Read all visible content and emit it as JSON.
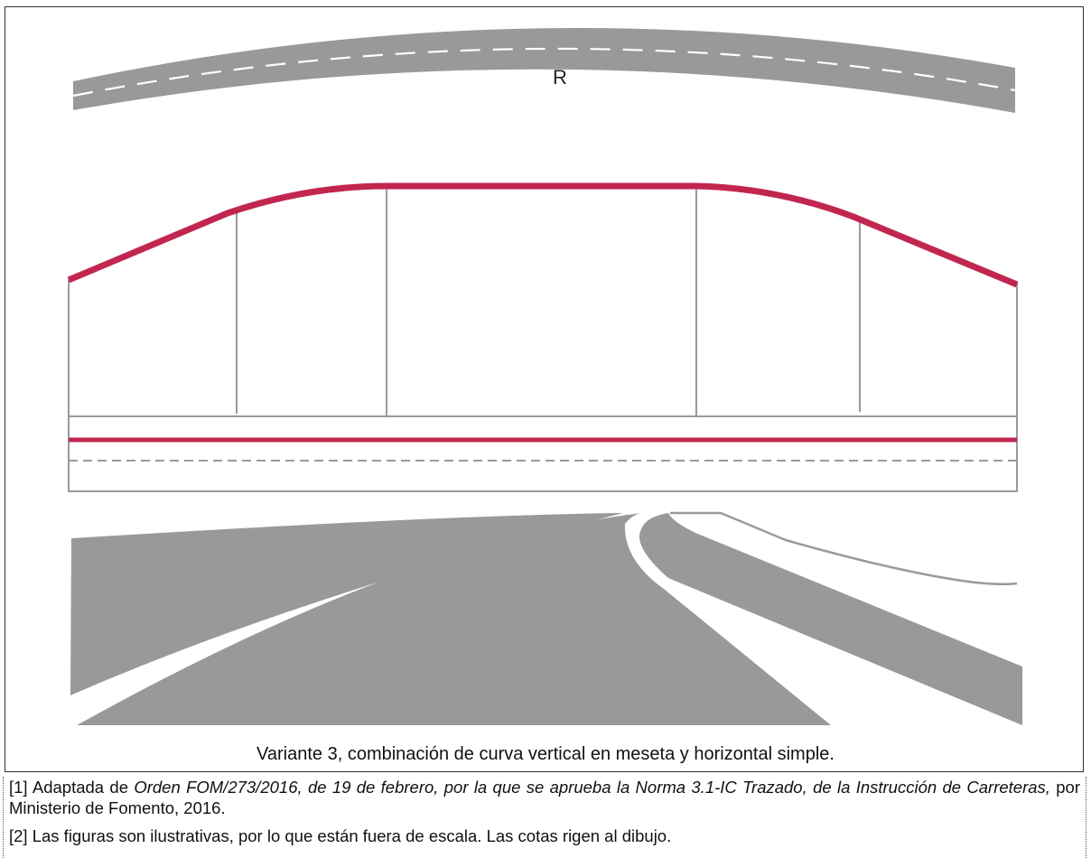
{
  "figure": {
    "label_r": "R",
    "caption": "Variante 3, combinación de curva vertical en meseta y horizontal simple."
  },
  "notes": [
    {
      "prefix": "[1] Adaptada de ",
      "italic": "Orden FOM/273/2016, de 19 de febrero, por la que se aprueba la Norma 3.1-IC Trazado, de la Instrucción de Carreteras,",
      "suffix": " por Ministerio de Fomento, 2016."
    },
    {
      "text": "[2] Las figuras son ilustrativas, por lo que están fuera de escala. Las cotas rigen al dibujo."
    }
  ],
  "colors": {
    "road_gray": "#999999",
    "profile_red": "#c1264f",
    "line_gray": "#9a9a9a",
    "dash_white": "#ffffff"
  }
}
